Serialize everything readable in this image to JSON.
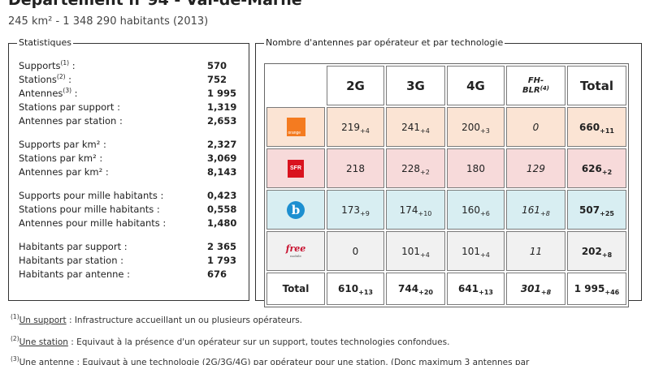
{
  "header": {
    "title": "Département n°94 - Val-de-Marne",
    "subtitle": "245 km² - 1 348 290 habitants (2013)"
  },
  "stats": {
    "legend": "Statistiques",
    "groups": [
      [
        {
          "label": "Supports",
          "sup": "(1)",
          "suffix": " :",
          "value": "570"
        },
        {
          "label": "Stations",
          "sup": "(2)",
          "suffix": " :",
          "value": "752"
        },
        {
          "label": "Antennes",
          "sup": "(3)",
          "suffix": " :",
          "value": "1 995"
        },
        {
          "label": "Stations par support :",
          "sup": "",
          "suffix": "",
          "value": "1,319"
        },
        {
          "label": "Antennes par station :",
          "sup": "",
          "suffix": "",
          "value": "2,653"
        }
      ],
      [
        {
          "label": "Supports par km² :",
          "sup": "",
          "suffix": "",
          "value": "2,327"
        },
        {
          "label": "Stations par km² :",
          "sup": "",
          "suffix": "",
          "value": "3,069"
        },
        {
          "label": "Antennes par km² :",
          "sup": "",
          "suffix": "",
          "value": "8,143"
        }
      ],
      [
        {
          "label": "Supports pour mille habitants :",
          "sup": "",
          "suffix": "",
          "value": "0,423"
        },
        {
          "label": "Stations pour mille habitants :",
          "sup": "",
          "suffix": "",
          "value": "0,558"
        },
        {
          "label": "Antennes pour mille habitants :",
          "sup": "",
          "suffix": "",
          "value": "1,480"
        }
      ],
      [
        {
          "label": "Habitants par support :",
          "sup": "",
          "suffix": "",
          "value": "2 365"
        },
        {
          "label": "Habitants par station :",
          "sup": "",
          "suffix": "",
          "value": "1 793"
        },
        {
          "label": "Habitants par antenne :",
          "sup": "",
          "suffix": "",
          "value": "676"
        }
      ]
    ]
  },
  "operators": {
    "legend": "Nombre d'antennes par opérateur et par technologie",
    "headers": {
      "g2": "2G",
      "g3": "3G",
      "g4": "4G",
      "fh_line1": "FH-",
      "fh_line2": "BLR",
      "fh_sup": "(4)",
      "total": "Total"
    },
    "rows": [
      {
        "key": "orange",
        "logo_text": "orange",
        "logo_icon": "orange-logo-icon",
        "g2": "219",
        "g2_d": "+4",
        "g3": "241",
        "g3_d": "+4",
        "g4": "200",
        "g4_d": "+3",
        "fh": "0",
        "fh_d": "",
        "total": "660",
        "total_d": "+11"
      },
      {
        "key": "sfr",
        "logo_text": "SFR",
        "logo_icon": "sfr-logo-icon",
        "g2": "218",
        "g2_d": "",
        "g3": "228",
        "g3_d": "+2",
        "g4": "180",
        "g4_d": "",
        "fh": "129",
        "fh_d": "",
        "total": "626",
        "total_d": "+2"
      },
      {
        "key": "bouy",
        "logo_text": "b",
        "logo_icon": "bouygues-logo-icon",
        "g2": "173",
        "g2_d": "+9",
        "g3": "174",
        "g3_d": "+10",
        "g4": "160",
        "g4_d": "+6",
        "fh": "161",
        "fh_d": "+8",
        "total": "507",
        "total_d": "+25"
      },
      {
        "key": "free",
        "logo_text": "free",
        "logo_sub": "mobile",
        "logo_icon": "free-logo-icon",
        "g2": "0",
        "g2_d": "",
        "g3": "101",
        "g3_d": "+4",
        "g4": "101",
        "g4_d": "+4",
        "fh": "11",
        "fh_d": "",
        "total": "202",
        "total_d": "+8"
      }
    ],
    "totals": {
      "label": "Total",
      "g2": "610",
      "g2_d": "+13",
      "g3": "744",
      "g3_d": "+20",
      "g4": "641",
      "g4_d": "+13",
      "fh": "301",
      "fh_d": "+8",
      "total": "1 995",
      "total_d": "+46"
    },
    "colors": {
      "orange": "#fbe4d4",
      "sfr": "#f7dada",
      "bouy": "#d8eef2",
      "free": "#f1f1f1"
    }
  },
  "footnotes": [
    {
      "num": "(1)",
      "term": "Un support",
      "text": " : Infrastructure accueillant un ou plusieurs opérateurs."
    },
    {
      "num": "(2)",
      "term": "Une station",
      "text": " : Equivaut à la présence d'un opérateur sur un support, toutes technologies confondues."
    },
    {
      "num": "(3)",
      "term": "Une antenne",
      "text": " : Equivaut à une technologie (2G/3G/4G) par opérateur pour une station. (Donc maximum 3 antennes par"
    }
  ]
}
